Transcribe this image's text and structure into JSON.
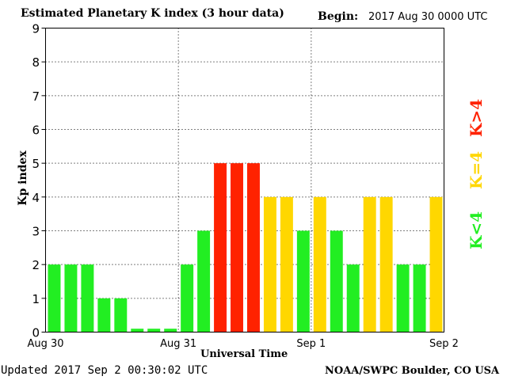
{
  "header": {
    "title": "Estimated Planetary K index (3 hour data)",
    "begin_label": "Begin:",
    "begin_value": "2017 Aug 30 0000 UTC"
  },
  "footer": {
    "updated": "Updated 2017 Sep  2 00:30:02 UTC",
    "source": "NOAA/SWPC Boulder, CO USA"
  },
  "legend": {
    "above": "K>4",
    "equal": "K=4",
    "below": "K<4"
  },
  "colors": {
    "below": "#22ee22",
    "equal": "#ffd700",
    "above": "#ff2200"
  },
  "chart_data": {
    "type": "bar",
    "title": "Estimated Planetary K index (3 hour data)",
    "xlabel": "Universal Time",
    "ylabel": "Kp index",
    "ylim": [
      0,
      9
    ],
    "yticks": [
      0,
      1,
      2,
      3,
      4,
      5,
      6,
      7,
      8,
      9
    ],
    "xtick_labels": [
      "Aug 30",
      "Aug 31",
      "Sep 1",
      "Sep 2"
    ],
    "grid": true,
    "values": [
      2,
      2,
      2,
      1,
      1,
      0.1,
      0.1,
      0.1,
      2,
      3,
      5,
      5,
      5,
      4,
      4,
      3,
      4,
      3,
      2,
      4,
      4,
      2,
      2,
      4
    ]
  }
}
